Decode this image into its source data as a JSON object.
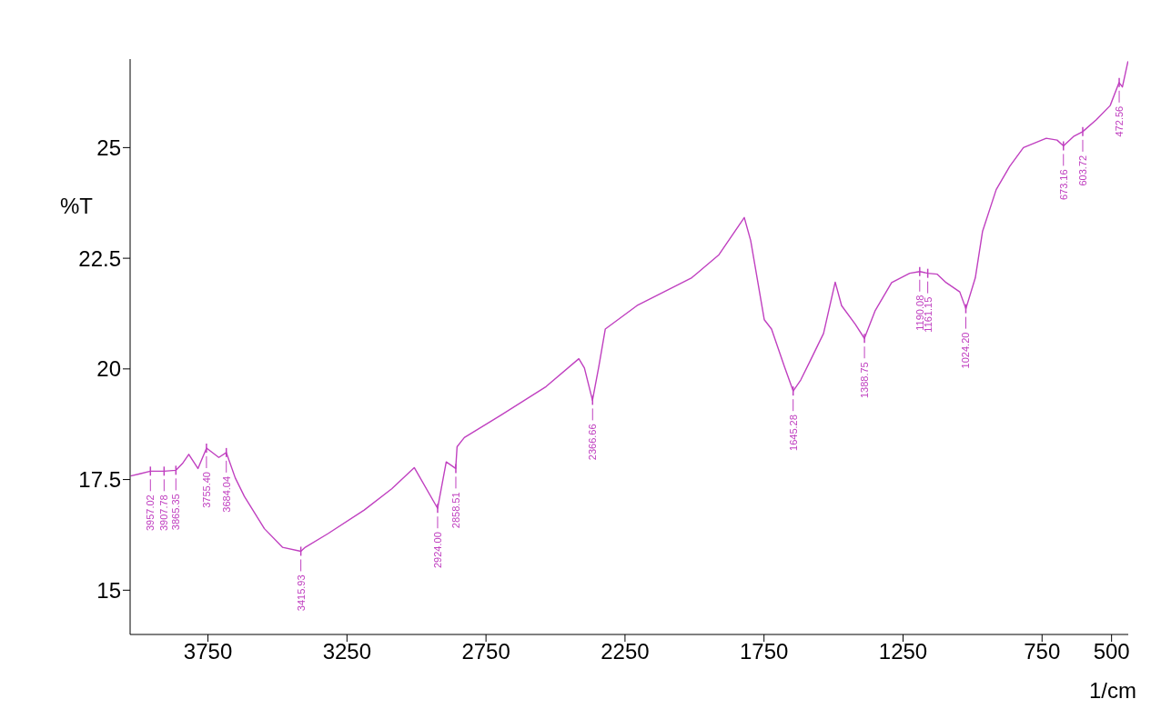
{
  "chart_data": {
    "type": "line",
    "xlabel": "1/cm",
    "ylabel": "%T",
    "xlim": [
      4030,
      440
    ],
    "xticks": [
      3750,
      3250,
      2750,
      2250,
      1750,
      1250,
      750,
      500
    ],
    "ylim": [
      14,
      27
    ],
    "yticks": [
      15,
      17.5,
      20,
      22.5,
      25
    ],
    "grid": false,
    "legend": false,
    "marker": "none",
    "line_style": "solid",
    "series": [
      {
        "color": "#c040c0",
        "x": [
          4028,
          3995,
          3957,
          3908,
          3865,
          3842,
          3819,
          3786,
          3755,
          3711,
          3684,
          3652,
          3619,
          3547,
          3482,
          3416,
          3400,
          3318,
          3188,
          3089,
          3008,
          2924,
          2893,
          2859,
          2854,
          2828,
          2697,
          2534,
          2416,
          2396,
          2367,
          2344,
          2321,
          2207,
          2010,
          1912,
          1821,
          1798,
          1749,
          1723,
          1677,
          1645,
          1618,
          1585,
          1536,
          1494,
          1471,
          1422,
          1389,
          1350,
          1291,
          1226,
          1190,
          1161,
          1127,
          1095,
          1046,
          1024,
          990,
          964,
          915,
          866,
          817,
          735,
          696,
          673,
          637,
          604,
          555,
          505,
          473,
          461,
          441
        ],
        "values": [
          17.58,
          17.63,
          17.69,
          17.69,
          17.71,
          17.86,
          18.07,
          17.75,
          18.21,
          18.0,
          18.11,
          17.54,
          17.12,
          16.39,
          15.97,
          15.88,
          15.97,
          16.28,
          16.81,
          17.29,
          17.77,
          16.85,
          17.9,
          17.75,
          18.24,
          18.45,
          18.95,
          19.6,
          20.23,
          20.02,
          19.29,
          20.06,
          20.9,
          21.43,
          22.06,
          22.58,
          23.42,
          22.9,
          21.11,
          20.9,
          20.06,
          19.5,
          19.75,
          20.17,
          20.8,
          21.96,
          21.43,
          21.01,
          20.69,
          21.32,
          21.95,
          22.16,
          22.2,
          22.16,
          22.14,
          21.95,
          21.74,
          21.36,
          22.06,
          23.11,
          24.05,
          24.58,
          25.0,
          25.21,
          25.17,
          25.04,
          25.25,
          25.36,
          25.63,
          25.95,
          26.47,
          26.37,
          26.95
        ]
      }
    ],
    "annotations": [
      {
        "text": "3957.02",
        "x": 3957.02,
        "y": 17.69
      },
      {
        "text": "3907.78",
        "x": 3907.78,
        "y": 17.69
      },
      {
        "text": "3865.35",
        "x": 3865.35,
        "y": 17.71
      },
      {
        "text": "3755.40",
        "x": 3755.4,
        "y": 18.21
      },
      {
        "text": "3684.04",
        "x": 3684.04,
        "y": 18.11
      },
      {
        "text": "3415.93",
        "x": 3415.93,
        "y": 15.88
      },
      {
        "text": "2924.00",
        "x": 2924.0,
        "y": 16.85
      },
      {
        "text": "2858.51",
        "x": 2858.51,
        "y": 17.75
      },
      {
        "text": "2366.66",
        "x": 2366.66,
        "y": 19.29
      },
      {
        "text": "1645.28",
        "x": 1645.28,
        "y": 19.5
      },
      {
        "text": "1388.75",
        "x": 1388.75,
        "y": 20.69
      },
      {
        "text": "1190.08",
        "x": 1190.08,
        "y": 22.2
      },
      {
        "text": "1161.15",
        "x": 1161.15,
        "y": 22.16
      },
      {
        "text": "1024.20",
        "x": 1024.2,
        "y": 21.36
      },
      {
        "text": "673.16",
        "x": 673.16,
        "y": 25.04
      },
      {
        "text": "603.72",
        "x": 603.72,
        "y": 25.36
      },
      {
        "text": "472.56",
        "x": 472.56,
        "y": 26.47
      }
    ]
  }
}
